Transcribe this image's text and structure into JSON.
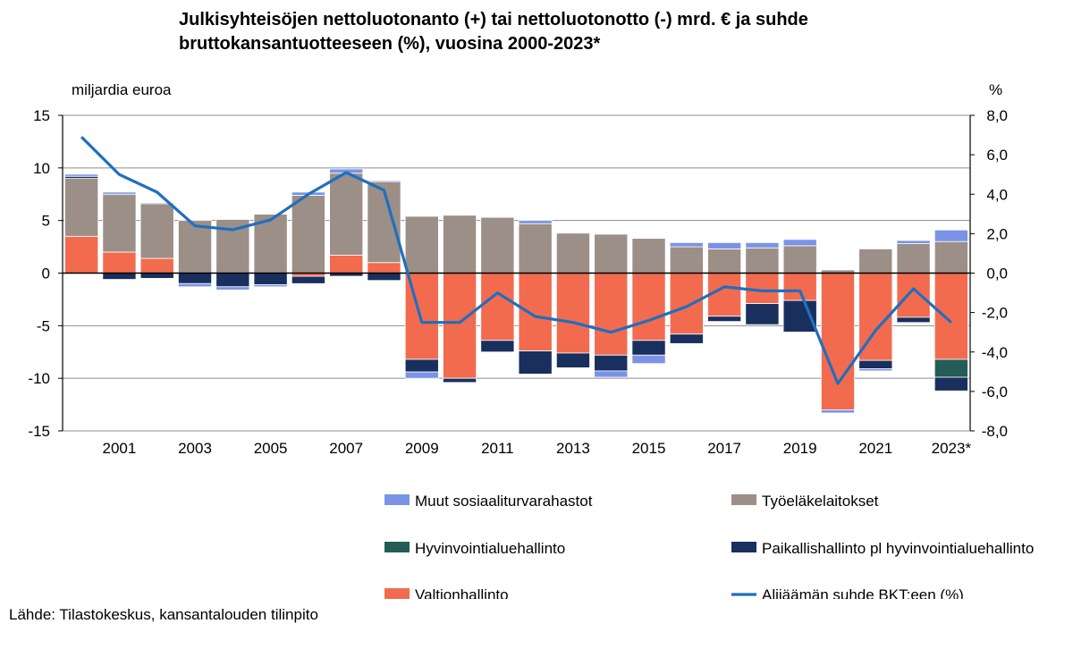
{
  "title_line1": "Julkisyhteisöjen nettoluotonanto (+) tai nettoluotonotto (-) mrd. € ja suhde",
  "title_line2": "bruttokansantuotteeseen (%), vuosina 2000-2023*",
  "left_axis_unit": "miljardia euroa",
  "right_axis_unit": "%",
  "source": "Lähde: Tilastokeskus, kansantalouden tilinpito",
  "chart_data": {
    "type": "bar",
    "stacked": true,
    "title": "Julkisyhteisöjen nettoluotonanto (+) tai nettoluotonotto (-) mrd. € ja suhde bruttokansantuotteeseen (%), vuosina 2000-2023*",
    "ylabel": "miljardia euroa",
    "y2label": "%",
    "ylim": [
      -15,
      15
    ],
    "y2lim": [
      -8,
      8
    ],
    "yticks": [
      "15",
      "10",
      "5",
      "0",
      "-5",
      "-10",
      "-15"
    ],
    "y2ticks": [
      "8,0",
      "6,0",
      "4,0",
      "2,0",
      "0,0",
      "-2,0",
      "-4,0",
      "-6,0",
      "-8,0"
    ],
    "grid": "horizontal",
    "legend_position": "bottom",
    "categories": [
      "2000",
      "2001",
      "2002",
      "2003",
      "2004",
      "2005",
      "2006",
      "2007",
      "2008",
      "2009",
      "2010",
      "2011",
      "2012",
      "2013",
      "2014",
      "2015",
      "2016",
      "2017",
      "2018",
      "2019",
      "2020",
      "2021",
      "2022",
      "2023*"
    ],
    "xtick_labels": [
      "",
      "2001",
      "",
      "2003",
      "",
      "2005",
      "",
      "2007",
      "",
      "2009",
      "",
      "2011",
      "",
      "2013",
      "",
      "2015",
      "",
      "2017",
      "",
      "2019",
      "",
      "2021",
      "",
      "2023*"
    ],
    "series": [
      {
        "name": "Valtionhallinto",
        "color": "#f26b4f",
        "values": [
          3.5,
          2.0,
          1.4,
          0,
          0,
          0,
          -0.3,
          1.7,
          1.0,
          -8.2,
          -10.0,
          -6.4,
          -7.4,
          -7.6,
          -7.8,
          -6.4,
          -5.8,
          -4.1,
          -2.9,
          -2.6,
          -13.0,
          -8.3,
          -4.2,
          -8.2
        ]
      },
      {
        "name": "Työeläkelaitokset",
        "color": "#9b8f88",
        "values": [
          5.5,
          5.5,
          5.2,
          5.0,
          5.1,
          5.6,
          7.4,
          7.8,
          7.7,
          5.4,
          5.5,
          5.3,
          4.7,
          3.8,
          3.7,
          3.3,
          2.5,
          2.3,
          2.4,
          2.6,
          0.3,
          2.3,
          2.8,
          3.0
        ]
      },
      {
        "name": "Hyvinvointialuehallinto",
        "color": "#235d55",
        "values": [
          0,
          0,
          0,
          0,
          0,
          0,
          0,
          0,
          0,
          0,
          0,
          0,
          0,
          0,
          0,
          0,
          0,
          0,
          0,
          0,
          0,
          0,
          0,
          -1.7
        ]
      },
      {
        "name": "Paikallishallinto pl hyvinvointialuehallinto",
        "color": "#192f5e",
        "values": [
          0.2,
          -0.6,
          -0.5,
          -1.0,
          -1.3,
          -1.1,
          -0.7,
          -0.3,
          -0.7,
          -1.2,
          -0.4,
          -1.1,
          -2.2,
          -1.4,
          -1.5,
          -1.4,
          -0.9,
          -0.5,
          -2.0,
          -3.0,
          0,
          -0.8,
          -0.5,
          -1.3
        ]
      },
      {
        "name": "Muut sosiaaliturvarahastot",
        "color": "#7b93e6",
        "values": [
          0.2,
          0.2,
          0.1,
          -0.3,
          -0.3,
          -0.2,
          0.3,
          0.4,
          0.1,
          -0.6,
          0,
          0,
          0.3,
          0,
          -0.6,
          -0.8,
          0.4,
          0.6,
          0.5,
          0.6,
          -0.3,
          -0.2,
          0.3,
          1.1
        ]
      }
    ],
    "line": {
      "name": "Alijäämän suhde BKT:een (%)",
      "color": "#1f6fbf",
      "axis": "right",
      "values": [
        6.9,
        5.0,
        4.1,
        2.4,
        2.2,
        2.7,
        4.0,
        5.1,
        4.2,
        -2.5,
        -2.5,
        -1.0,
        -2.2,
        -2.5,
        -3.0,
        -2.4,
        -1.7,
        -0.7,
        -0.9,
        -0.9,
        -5.6,
        -2.9,
        -0.8,
        -2.5
      ]
    },
    "legend": [
      {
        "label": "Muut sosiaaliturvarahastot",
        "kind": "box",
        "color": "#7b93e6"
      },
      {
        "label": "Työeläkelaitokset",
        "kind": "box",
        "color": "#9b8f88"
      },
      {
        "label": "Hyvinvointialuehallinto",
        "kind": "box",
        "color": "#235d55"
      },
      {
        "label": "Paikallishallinto pl hyvinvointialuehallinto",
        "kind": "box",
        "color": "#192f5e"
      },
      {
        "label": "Valtionhallinto",
        "kind": "box",
        "color": "#f26b4f"
      },
      {
        "label": "Alijäämän suhde BKT:een (%)",
        "kind": "line",
        "color": "#1f6fbf"
      }
    ]
  }
}
